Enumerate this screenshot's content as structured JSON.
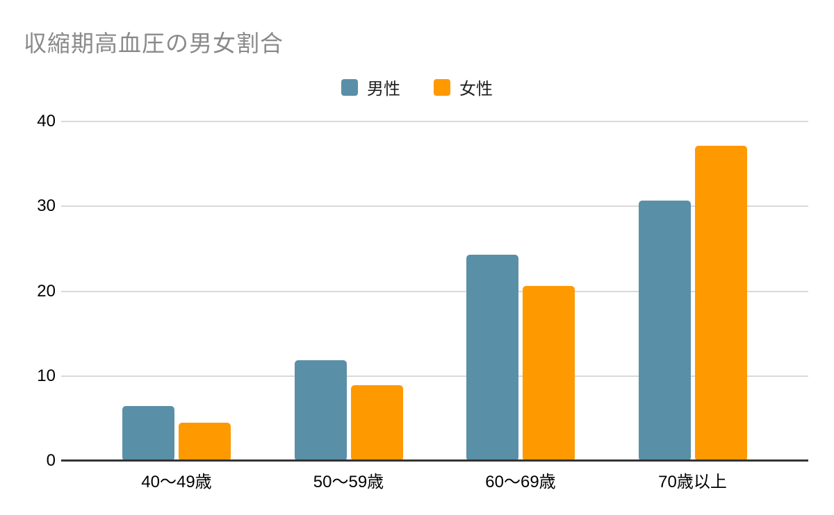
{
  "page": {
    "background_color": "#ffffff"
  },
  "chart_data": {
    "type": "bar",
    "title": "収縮期高血圧の男女割合",
    "title_color": "#8a8a8a",
    "categories": [
      "40〜49歳",
      "50〜59歳",
      "60〜69歳",
      "70歳以上"
    ],
    "series": [
      {
        "name": "男性",
        "color": "#5A8FA8",
        "values": [
          6.5,
          11.9,
          24.3,
          30.7
        ]
      },
      {
        "name": "女性",
        "color": "#FF9900",
        "values": [
          4.5,
          8.9,
          20.6,
          37.1
        ]
      }
    ],
    "xlabel": "",
    "ylabel": "",
    "ylim": [
      0,
      40
    ],
    "yticks": [
      0,
      10,
      20,
      30,
      40
    ],
    "grid": "horizontal",
    "gridline_color": "#d9d9d9",
    "axis_line_color": "#333333",
    "tick_label_color": "#000000",
    "legend_position": "top-center"
  }
}
